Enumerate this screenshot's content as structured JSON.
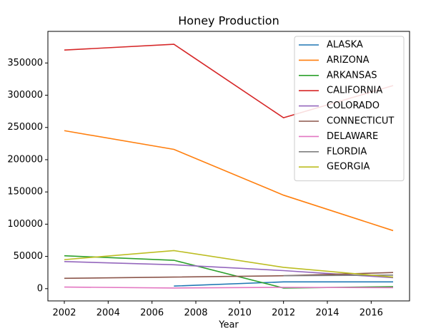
{
  "chart_data": {
    "type": "line",
    "title": "Honey Production",
    "xlabel": "Year",
    "x": [
      2002,
      2007,
      2012,
      2017
    ],
    "series": [
      {
        "name": "ALASKA",
        "color": "#1f77b4",
        "values": [
          null,
          4000,
          10500,
          10500
        ]
      },
      {
        "name": "ARIZONA",
        "color": "#ff7f0e",
        "values": [
          245000,
          216000,
          145000,
          90000
        ]
      },
      {
        "name": "ARKANSAS",
        "color": "#2ca02c",
        "values": [
          51000,
          44000,
          1000,
          3000
        ]
      },
      {
        "name": "CALIFORNIA",
        "color": "#d62728",
        "values": [
          370000,
          379000,
          265000,
          315000
        ]
      },
      {
        "name": "COLORADO",
        "color": "#9467bd",
        "values": [
          42000,
          37000,
          28000,
          17000
        ]
      },
      {
        "name": "CONNECTICUT",
        "color": "#8c564b",
        "values": [
          16000,
          18000,
          20000,
          25000
        ]
      },
      {
        "name": "DELAWARE",
        "color": "#e377c2",
        "values": [
          2500,
          1000,
          2000,
          1500
        ]
      },
      {
        "name": "FLORDIA",
        "color": "#7f7f7f",
        "values": [
          null,
          null,
          20000,
          21000
        ]
      },
      {
        "name": "GEORGIA",
        "color": "#bcbd22",
        "values": [
          45000,
          59000,
          33000,
          18000
        ]
      }
    ],
    "xlim": [
      2001.25,
      2017.75
    ],
    "xticks": [
      2002,
      2004,
      2006,
      2008,
      2010,
      2012,
      2014,
      2016
    ],
    "ylim": [
      -19000,
      399000
    ],
    "yticks": [
      0,
      50000,
      100000,
      150000,
      200000,
      250000,
      300000,
      350000
    ],
    "grid": false,
    "legend": "upper right"
  }
}
